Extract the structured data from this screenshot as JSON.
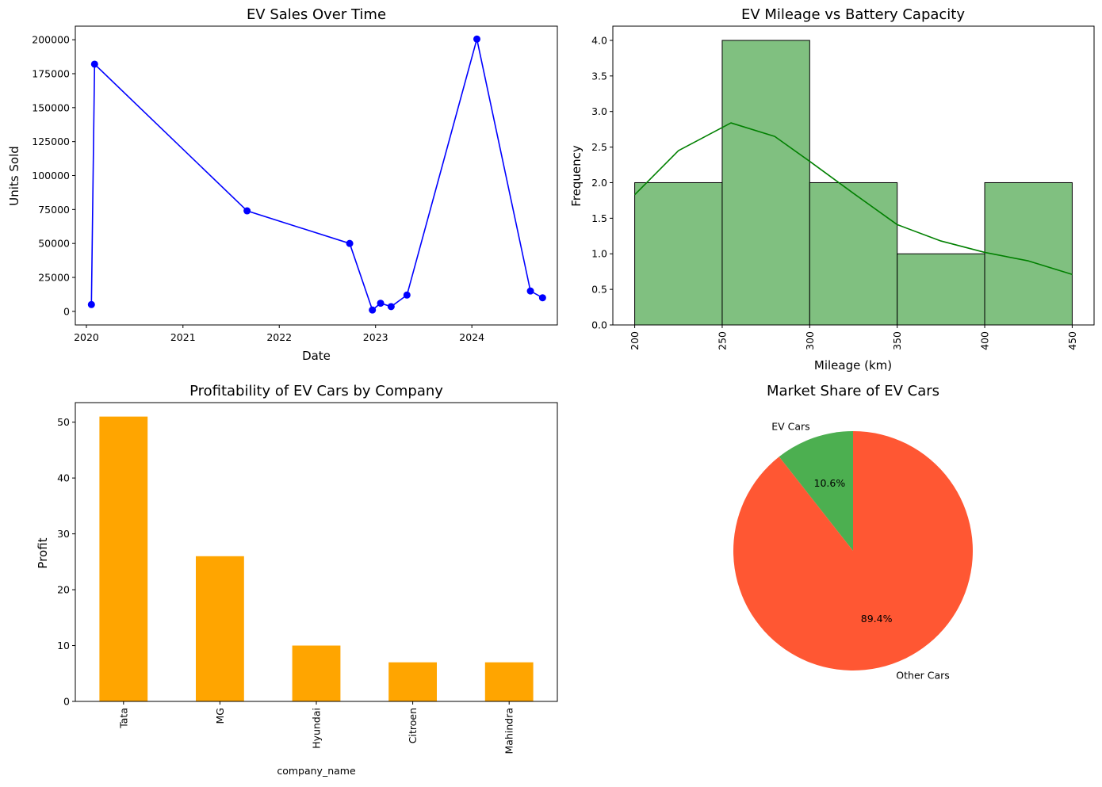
{
  "chart_data": [
    {
      "type": "line",
      "title": "EV Sales Over Time",
      "xlabel": "Date",
      "ylabel": "Units Sold",
      "color": "#0000ff",
      "x": [
        "2020-01-20",
        "2020-02-01",
        "2021-09-01",
        "2022-09-25",
        "2022-12-20",
        "2023-01-20",
        "2023-03-01",
        "2023-04-30",
        "2024-01-20",
        "2024-08-10",
        "2024-09-25"
      ],
      "y": [
        5000,
        182000,
        74000,
        50000,
        1000,
        6000,
        3500,
        12000,
        200500,
        15000,
        10000
      ],
      "xlim": [
        "2019-11-20",
        "2024-11-20"
      ],
      "ylim": [
        -10000,
        210000
      ],
      "xticks": [
        "2020",
        "2021",
        "2022",
        "2023",
        "2024"
      ],
      "yticks": [
        "0",
        "25000",
        "50000",
        "75000",
        "100000",
        "125000",
        "150000",
        "175000",
        "200000"
      ],
      "grid": false
    },
    {
      "type": "bar",
      "subtype": "histogram",
      "title": "EV Mileage vs Battery Capacity",
      "xlabel": "Mileage (km)",
      "ylabel": "Frequency",
      "bins": [
        [
          200,
          250
        ],
        [
          250,
          300
        ],
        [
          300,
          350
        ],
        [
          350,
          400
        ],
        [
          400,
          450
        ]
      ],
      "counts": [
        2,
        4,
        2,
        1,
        2
      ],
      "kde": [
        [
          200,
          1.83
        ],
        [
          225,
          2.45
        ],
        [
          255,
          2.84
        ],
        [
          280,
          2.65
        ],
        [
          300,
          2.3
        ],
        [
          325,
          1.85
        ],
        [
          350,
          1.41
        ],
        [
          375,
          1.18
        ],
        [
          400,
          1.02
        ],
        [
          425,
          0.9
        ],
        [
          450,
          0.71
        ]
      ],
      "xlim": [
        187.5,
        462.5
      ],
      "ylim": [
        0,
        4.2
      ],
      "xticks": [
        "200",
        "250",
        "300",
        "350",
        "400",
        "450"
      ],
      "yticks": [
        "0.0",
        "0.5",
        "1.0",
        "1.5",
        "2.0",
        "2.5",
        "3.0",
        "3.5",
        "4.0"
      ],
      "color": "#80c080",
      "kde_color": "#008000",
      "grid": false
    },
    {
      "type": "bar",
      "title": "Profitability of EV Cars by Company",
      "xlabel": "company_name",
      "ylabel": "Profit",
      "categories": [
        "Tata",
        "MG",
        "Hyundai",
        "Citroen",
        "Mahindra"
      ],
      "values": [
        51,
        26,
        10,
        7,
        7
      ],
      "ylim": [
        0,
        53.5
      ],
      "yticks": [
        "0",
        "10",
        "20",
        "30",
        "40",
        "50"
      ],
      "color": "#ffa500",
      "grid": false
    },
    {
      "type": "pie",
      "title": "Market Share of EV Cars",
      "slices": [
        {
          "label": "EV Cars",
          "value": 10.6,
          "pct_label": "10.6%",
          "color": "#4caf50"
        },
        {
          "label": "Other Cars",
          "value": 89.4,
          "pct_label": "89.4%",
          "color": "#ff5733"
        }
      ]
    }
  ]
}
